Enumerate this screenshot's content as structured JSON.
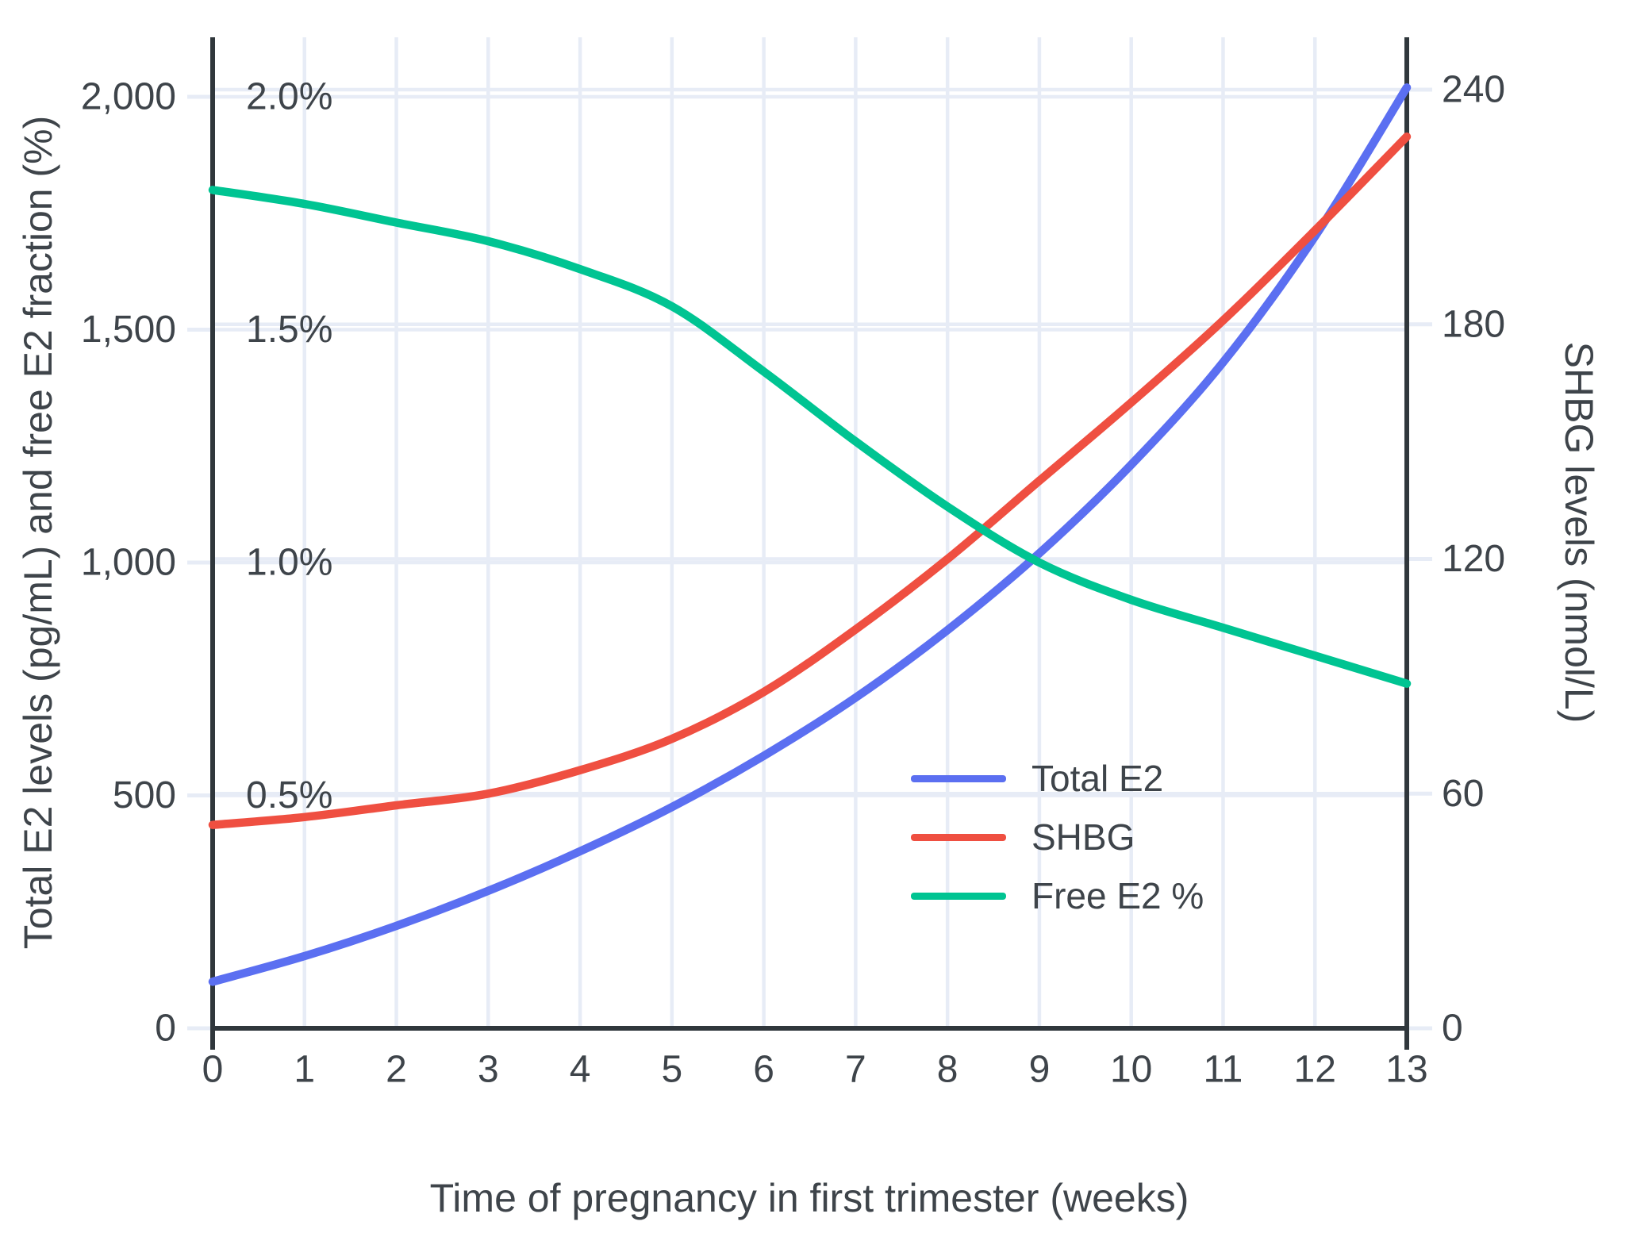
{
  "chart_data": {
    "type": "line",
    "x_label": "Time of pregnancy in first trimester (weeks)",
    "y_left_label": "Total E2 levels (pg/mL) and free E2 fraction (%)",
    "y_right_label": "SHBG levels (nmol/L)",
    "x": [
      0,
      1,
      2,
      3,
      4,
      5,
      6,
      7,
      8,
      9,
      10,
      11,
      12,
      13
    ],
    "x_tick_labels": [
      "0",
      "1",
      "2",
      "3",
      "4",
      "5",
      "6",
      "7",
      "8",
      "9",
      "10",
      "11",
      "12",
      "13"
    ],
    "x_range": [
      0,
      13
    ],
    "left_range": [
      0,
      2000
    ],
    "right_range": [
      0,
      240
    ],
    "grid": true,
    "legend_position": "inside-lower-right",
    "left_ticks": {
      "values": [
        0,
        500,
        1000,
        1500,
        2000
      ],
      "labels": [
        "0",
        "500",
        "1,000",
        "1,500",
        "2,000"
      ]
    },
    "pct_ticks": {
      "values": [
        500,
        1000,
        1500,
        2000
      ],
      "labels": [
        "0.5%",
        "1.0%",
        "1.5%",
        "2.0%"
      ]
    },
    "right_ticks": {
      "values": [
        0,
        60,
        120,
        180,
        240
      ],
      "labels": [
        "0",
        "60",
        "120",
        "180",
        "240"
      ]
    },
    "series": [
      {
        "name": "Total E2",
        "axis": "left",
        "color": "#5b6ff1",
        "units": "pg/mL",
        "values": [
          100,
          155,
          220,
          295,
          380,
          475,
          585,
          710,
          855,
          1020,
          1210,
          1430,
          1700,
          2020
        ]
      },
      {
        "name": "SHBG",
        "axis": "right",
        "color": "#ef4f41",
        "units": "nmol/L",
        "values": [
          52,
          54,
          57,
          60,
          66,
          74,
          86,
          102,
          120,
          140,
          160,
          181,
          204,
          228
        ]
      },
      {
        "name": "Free E2 %",
        "axis": "percent",
        "color": "#00c492",
        "units": "%",
        "values": [
          1.8,
          1.77,
          1.73,
          1.69,
          1.63,
          1.55,
          1.41,
          1.26,
          1.12,
          1.0,
          0.92,
          0.86,
          0.8,
          0.74
        ]
      }
    ],
    "colors": {
      "grid": "#e7ecf6",
      "axis_line": "#30373c",
      "tick_text": "#3e444a"
    }
  },
  "legend": {
    "items": [
      {
        "label": "Total E2"
      },
      {
        "label": "SHBG"
      },
      {
        "label": "Free E2 %"
      }
    ]
  }
}
